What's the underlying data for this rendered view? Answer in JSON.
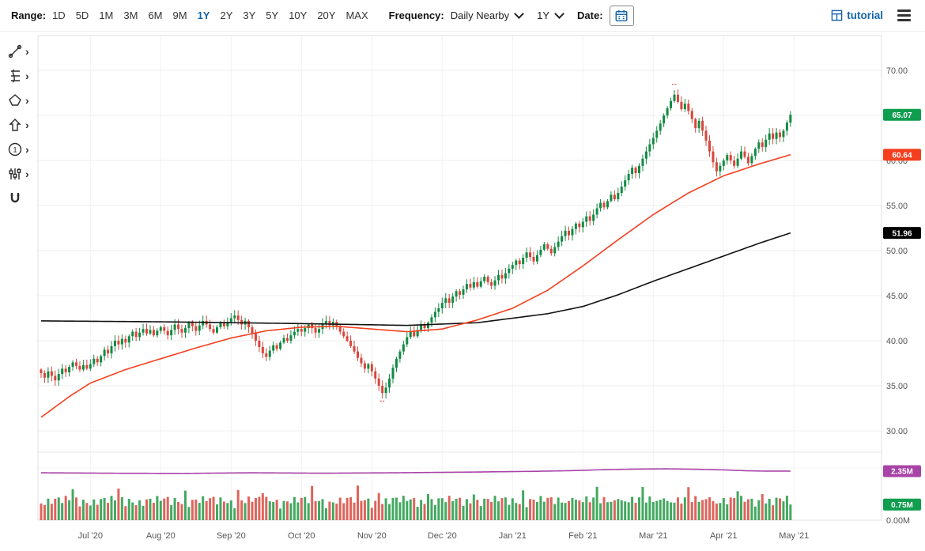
{
  "toolbar": {
    "range_label": "Range:",
    "range_options": [
      "1D",
      "5D",
      "1M",
      "3M",
      "6M",
      "9M",
      "1Y",
      "2Y",
      "3Y",
      "5Y",
      "10Y",
      "20Y",
      "MAX"
    ],
    "active_range": "1Y",
    "frequency_label": "Frequency:",
    "frequency_value": "Daily Nearby",
    "period_value": "1Y",
    "date_label": "Date:",
    "tutorial_label": "tutorial",
    "accent_color": "#1464ab"
  },
  "drawing_tools": [
    {
      "name": "trendline-tool",
      "icon": "trendline",
      "chevron": true
    },
    {
      "name": "fibonacci-tool",
      "icon": "fibonacci",
      "chevron": true
    },
    {
      "name": "shapes-tool",
      "icon": "shapes",
      "chevron": true
    },
    {
      "name": "arrow-annotation-tool",
      "icon": "arrow-up",
      "chevron": true
    },
    {
      "name": "number-annotation-tool",
      "icon": "circled-one",
      "chevron": true
    },
    {
      "name": "studies-tool",
      "icon": "sliders",
      "chevron": true
    },
    {
      "name": "magnet-tool",
      "icon": "magnet",
      "chevron": false
    }
  ],
  "icons": {
    "chevron_right": "›",
    "circled_number": "1"
  },
  "chart_data": {
    "type": "candlestick_with_volume",
    "x_labels": [
      "Jul '20",
      "Aug '20",
      "Sep '20",
      "Oct '20",
      "Nov '20",
      "Dec '20",
      "Jan '21",
      "Feb '21",
      "Mar '21",
      "Apr '21",
      "May '21"
    ],
    "month_tick_indices": [
      14,
      34,
      54,
      74,
      94,
      114,
      134,
      154,
      174,
      194,
      214
    ],
    "price_ticks": [
      70,
      65,
      60,
      55,
      50,
      45,
      40,
      35,
      30
    ],
    "volume_ticks": [
      2.5,
      0
    ],
    "first_open": 36.8,
    "closes": [
      36.4,
      35.9,
      36.6,
      36.1,
      35.6,
      36.3,
      36.9,
      36.5,
      37.1,
      37.6,
      37.2,
      36.8,
      37.3,
      36.9,
      37.4,
      38.0,
      37.6,
      38.3,
      39.0,
      38.6,
      39.4,
      40.0,
      39.6,
      40.2,
      39.8,
      40.5,
      41.0,
      40.4,
      40.9,
      41.3,
      40.8,
      41.2,
      40.6,
      41.1,
      41.5,
      41.1,
      40.6,
      41.2,
      41.8,
      41.3,
      40.9,
      41.4,
      42.0,
      41.6,
      41.1,
      41.7,
      42.2,
      41.8,
      41.3,
      40.9,
      41.5,
      42.0,
      41.6,
      42.1,
      42.5,
      42.8,
      42.3,
      41.8,
      42.2,
      41.5,
      40.8,
      40.0,
      39.3,
      38.6,
      38.2,
      38.9,
      39.5,
      39.1,
      39.8,
      40.3,
      40.0,
      40.6,
      41.0,
      41.3,
      41.0,
      41.4,
      41.8,
      41.4,
      40.9,
      41.3,
      41.9,
      42.2,
      41.7,
      42.1,
      41.6,
      41.0,
      40.5,
      40.0,
      39.4,
      38.8,
      38.1,
      37.5,
      36.9,
      37.4,
      36.6,
      35.8,
      35.0,
      34.2,
      34.8,
      35.8,
      37.0,
      38.0,
      38.8,
      39.6,
      40.4,
      41.0,
      40.5,
      41.2,
      41.8,
      41.4,
      42.0,
      42.6,
      43.2,
      43.6,
      44.2,
      44.7,
      44.2,
      44.9,
      45.5,
      45.1,
      45.7,
      46.3,
      45.9,
      46.5,
      46.0,
      46.6,
      47.1,
      46.5,
      46.1,
      46.7,
      47.3,
      46.9,
      47.5,
      48.0,
      48.4,
      48.9,
      48.5,
      49.2,
      49.8,
      49.3,
      48.8,
      49.5,
      50.1,
      50.7,
      50.2,
      49.7,
      50.4,
      51.0,
      51.6,
      52.2,
      51.7,
      52.4,
      53.0,
      52.6,
      53.2,
      53.8,
      53.3,
      54.0,
      54.7,
      55.3,
      54.8,
      55.5,
      56.2,
      55.7,
      56.4,
      57.1,
      57.8,
      58.5,
      59.2,
      58.6,
      59.4,
      60.2,
      61.0,
      61.8,
      62.5,
      63.3,
      64.1,
      65.0,
      65.8,
      66.6,
      67.3,
      66.5,
      65.7,
      66.3,
      65.5,
      64.6,
      63.6,
      64.4,
      63.3,
      62.2,
      61.0,
      59.8,
      58.8,
      59.4,
      60.0,
      60.6,
      60.0,
      59.4,
      60.2,
      61.0,
      60.4,
      59.7,
      60.5,
      61.3,
      62.0,
      61.5,
      62.3,
      63.0,
      62.4,
      63.1,
      62.6,
      63.3,
      64.2,
      65.07
    ],
    "ma_fast": {
      "color": "#f43f1e",
      "last": 60.64,
      "anchors": [
        [
          0,
          31.5
        ],
        [
          8,
          33.8
        ],
        [
          14,
          35.3
        ],
        [
          24,
          36.8
        ],
        [
          34,
          38.0
        ],
        [
          44,
          39.2
        ],
        [
          54,
          40.3
        ],
        [
          64,
          41.1
        ],
        [
          74,
          41.5
        ],
        [
          84,
          41.6
        ],
        [
          94,
          41.3
        ],
        [
          104,
          41.0
        ],
        [
          114,
          41.3
        ],
        [
          124,
          42.3
        ],
        [
          134,
          43.6
        ],
        [
          144,
          45.6
        ],
        [
          154,
          48.3
        ],
        [
          164,
          51.2
        ],
        [
          174,
          54.0
        ],
        [
          184,
          56.4
        ],
        [
          194,
          58.3
        ],
        [
          204,
          59.6
        ],
        [
          213,
          60.64
        ]
      ]
    },
    "ma_slow": {
      "color": "#111111",
      "last": 51.96,
      "anchors": [
        [
          0,
          42.2
        ],
        [
          34,
          42.1
        ],
        [
          74,
          41.9
        ],
        [
          104,
          41.7
        ],
        [
          124,
          42.0
        ],
        [
          144,
          43.0
        ],
        [
          154,
          43.8
        ],
        [
          164,
          45.1
        ],
        [
          174,
          46.6
        ],
        [
          184,
          48.0
        ],
        [
          194,
          49.4
        ],
        [
          204,
          50.8
        ],
        [
          213,
          51.96
        ]
      ]
    },
    "open_interest_line": {
      "color": "#a843a8",
      "last": 2.35,
      "anchors": [
        [
          0,
          2.27
        ],
        [
          20,
          2.25
        ],
        [
          40,
          2.24
        ],
        [
          60,
          2.27
        ],
        [
          80,
          2.25
        ],
        [
          100,
          2.27
        ],
        [
          120,
          2.3
        ],
        [
          140,
          2.34
        ],
        [
          150,
          2.37
        ],
        [
          160,
          2.42
        ],
        [
          170,
          2.45
        ],
        [
          178,
          2.46
        ],
        [
          186,
          2.44
        ],
        [
          194,
          2.41
        ],
        [
          200,
          2.37
        ],
        [
          206,
          2.35
        ],
        [
          213,
          2.35
        ]
      ]
    },
    "volume": {
      "max": 2.5,
      "last": 0.75,
      "spike_indices": [
        9,
        22,
        41,
        56,
        63,
        77,
        90,
        96,
        110,
        123,
        137,
        151,
        158,
        164,
        171,
        177,
        184,
        190,
        198,
        205
      ],
      "up_color": "#2f9e4f",
      "down_color": "#d9534a"
    },
    "candle_colors": {
      "up": "#128a43",
      "down": "#d9453a"
    },
    "badges": [
      {
        "name": "last-price-badge",
        "text": "65.07",
        "value": 65.07,
        "panel": "price",
        "color": "#0f9d4e"
      },
      {
        "name": "ma-fast-badge",
        "text": "60.64",
        "value": 60.64,
        "panel": "price",
        "color": "#f43f1e"
      },
      {
        "name": "ma-slow-badge",
        "text": "51.96",
        "value": 51.96,
        "panel": "price",
        "color": "#000000"
      },
      {
        "name": "open-interest-badge",
        "text": "2.35M",
        "value": 2.35,
        "panel": "volume",
        "color": "#a843a8"
      },
      {
        "name": "volume-badge",
        "text": "0.75M",
        "value": 0.75,
        "panel": "volume",
        "color": "#0f9d4e"
      }
    ],
    "markers": [
      {
        "name": "session-high-marker",
        "index": 180,
        "price": 68.45,
        "color": "#e05252"
      },
      {
        "name": "session-low-marker",
        "index": 97,
        "price": 33.3,
        "color": "#e05252"
      }
    ]
  }
}
